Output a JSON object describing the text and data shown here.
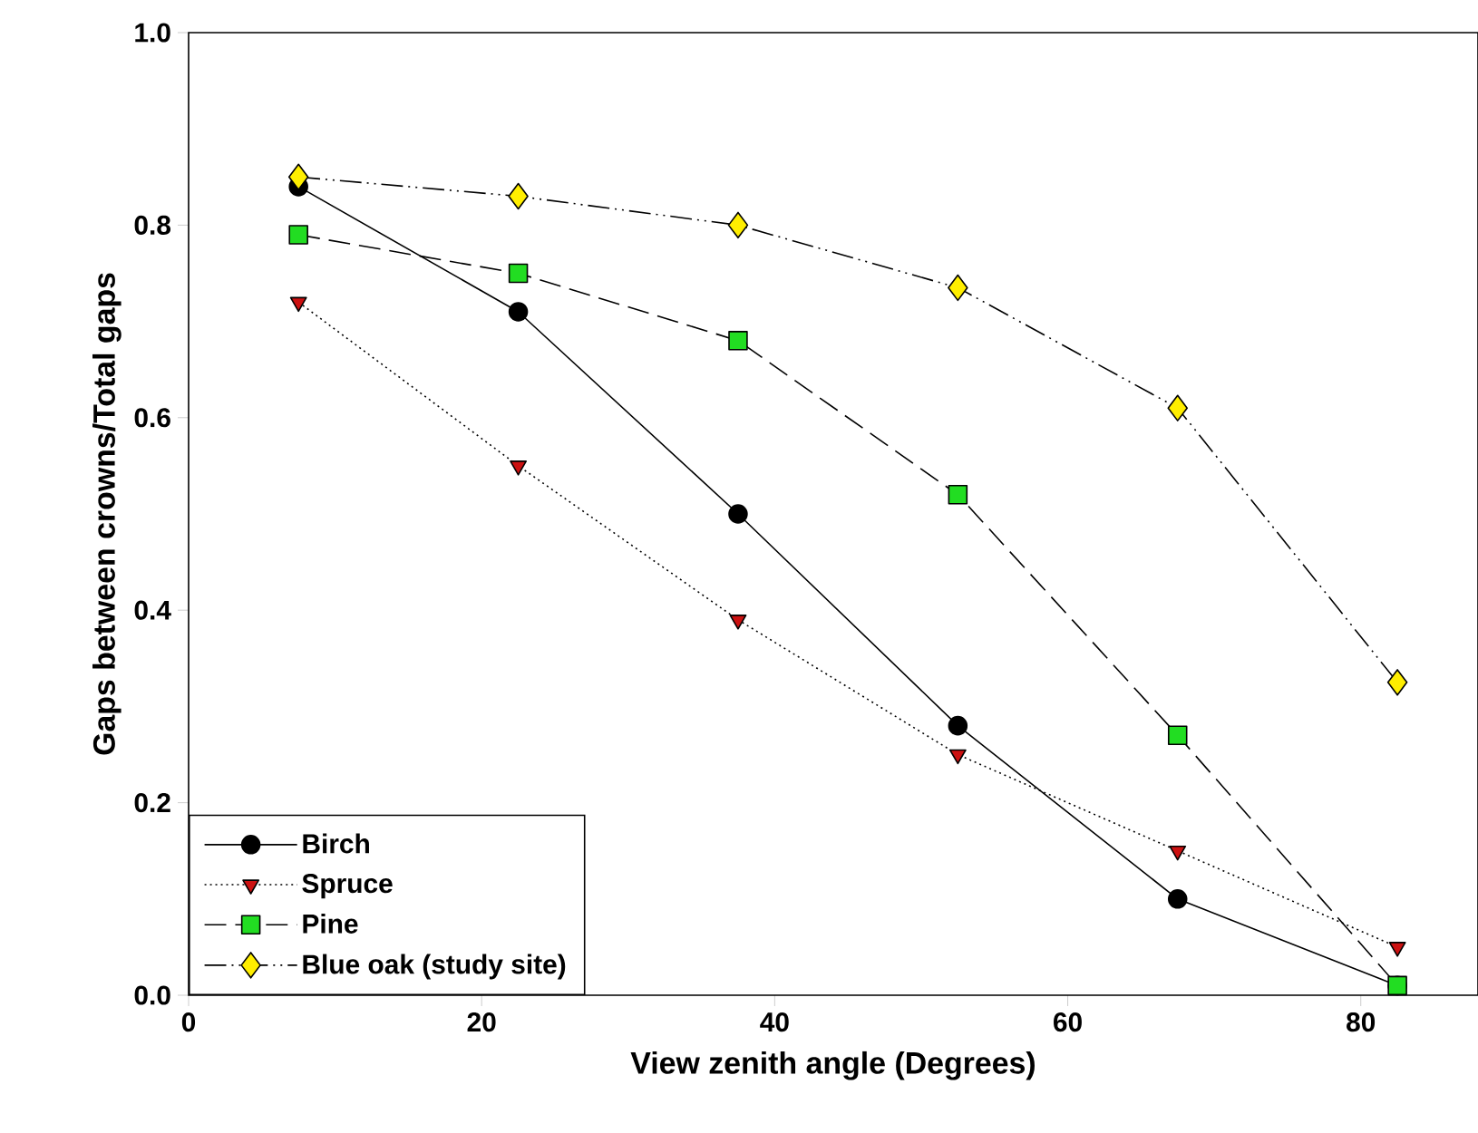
{
  "chart_data": {
    "type": "line",
    "x": [
      7.5,
      22.5,
      37.5,
      52.5,
      67.5,
      82.5
    ],
    "xlabel": "View zenith angle (Degrees)",
    "ylabel": "Gaps between crowns/Total gaps",
    "xlim": [
      0,
      88
    ],
    "xticks": [
      0,
      20,
      40,
      60,
      80
    ],
    "ylim": [
      0,
      1.0
    ],
    "yticks": [
      {
        "value": 0,
        "label": "0.0"
      },
      {
        "value": 0.2,
        "label": "0.2"
      },
      {
        "value": 0.4,
        "label": "0.4"
      },
      {
        "value": 0.6,
        "label": "0.6"
      },
      {
        "value": 0.8,
        "label": "0.8"
      },
      {
        "value": 1.0,
        "label": "1.0"
      }
    ],
    "grid": false,
    "legend": "bottom left",
    "series": [
      {
        "name": "Birch",
        "color": "#000000",
        "marker": "circle",
        "line_style": "solid",
        "values": [
          0.84,
          0.71,
          0.5,
          0.28,
          0.1,
          0.01
        ]
      },
      {
        "name": "Spruce",
        "color": "#cc1111",
        "marker": "triangle",
        "line_style": "dotted",
        "values": [
          0.72,
          0.55,
          0.39,
          0.25,
          0.15,
          0.05
        ]
      },
      {
        "name": "Pine",
        "color": "#22dd22",
        "marker": "square",
        "line_style": "dashed",
        "values": [
          0.79,
          0.75,
          0.68,
          0.52,
          0.27,
          0.01
        ]
      },
      {
        "name": "Blue oak (study site)",
        "color": "#ffee00",
        "marker": "diamond",
        "line_style": "dashdotdotted",
        "values": [
          0.85,
          0.83,
          0.8,
          0.735,
          0.61,
          0.325
        ]
      }
    ]
  }
}
